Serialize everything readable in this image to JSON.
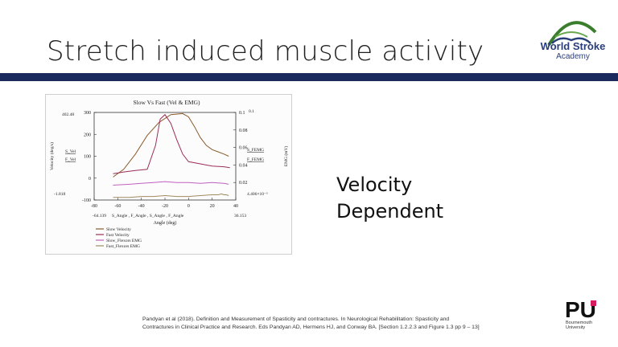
{
  "slide": {
    "title": "Stretch induced muscle activity",
    "velocity_line1": "Velocity",
    "velocity_line2": "Dependent",
    "citation": "Pandyan et al (2018). Definition and Measurement of Spasticity and contractures. In Neurological Rehabilitation: Spasticity and Contractures in Clinical Practice and Research. Eds Pandyan AD, Hermens HJ, and Conway BA. [Section 1.2.2.3 and Figure 1.3 pp 9 – 13]"
  },
  "logos": {
    "wsa_line1": "World Stroke",
    "wsa_line2": "Academy",
    "pu_letters": "PU",
    "pu_line1": "Bournemouth",
    "pu_line2": "University"
  },
  "colors": {
    "title_bar": "#1b2a5c",
    "slow_velocity": "#8B5A2B",
    "fast_velocity": "#9b2d5a",
    "slow_emg": "#c060c0",
    "fast_emg": "#a08a60"
  },
  "chart_data": {
    "type": "line",
    "title": "Slow Vs Fast (Vel & EMG)",
    "xlabel": "Angle (deg)",
    "ylabel_left": "Velocity (deg/s)",
    "ylabel_right": "EMG (mV)",
    "xlim": [
      -80,
      40
    ],
    "ylim_left": [
      -100,
      300
    ],
    "ylim_right": [
      0,
      0.1
    ],
    "x_ticks": [
      "-80",
      "-60",
      "-40",
      "-20",
      "0",
      "20",
      "40"
    ],
    "y_ticks_left": [
      "-100",
      "0",
      "100",
      "200",
      "300"
    ],
    "y_ticks_right": [
      "0.02",
      "0.04",
      "0.06",
      "0.08",
      "0.1"
    ],
    "readouts": {
      "left_top": "402.48",
      "left_bottom": "-1.818",
      "right_bottom": "4.406×10⁻³",
      "x_left": "-64.139",
      "x_right": "36.153",
      "x_mid": "S_Angle , F_Angle , S_Angle , F_Angle",
      "left_labels": [
        "S_Vel",
        "F_Vel"
      ],
      "right_labels": [
        "S_FEMG",
        "F_FEMG"
      ]
    },
    "series": [
      {
        "name": "Slow Velocity",
        "axis": "left",
        "x": [
          -64,
          -55,
          -45,
          -35,
          -25,
          -15,
          -5,
          0,
          5,
          10,
          15,
          20,
          25,
          30,
          34
        ],
        "y": [
          5,
          40,
          110,
          195,
          255,
          290,
          295,
          280,
          235,
          185,
          150,
          130,
          120,
          110,
          100
        ]
      },
      {
        "name": "Fast Velocity",
        "axis": "left",
        "x": [
          -64,
          -55,
          -45,
          -35,
          -28,
          -24,
          -20,
          -15,
          -10,
          -5,
          0,
          10,
          20,
          30,
          35
        ],
        "y": [
          20,
          28,
          35,
          40,
          150,
          270,
          290,
          250,
          175,
          110,
          75,
          65,
          55,
          52,
          48
        ]
      },
      {
        "name": "Slow_Flexors EMG",
        "axis": "right",
        "x": [
          -64,
          -50,
          -40,
          -30,
          -20,
          -10,
          0,
          10,
          20,
          30,
          34
        ],
        "y": [
          0.017,
          0.018,
          0.019,
          0.02,
          0.021,
          0.02,
          0.02,
          0.019,
          0.02,
          0.019,
          0.018
        ]
      },
      {
        "name": "Fast_Flexors EMG",
        "axis": "right",
        "x": [
          -64,
          -50,
          -40,
          -30,
          -20,
          -10,
          0,
          10,
          20,
          25,
          28,
          30,
          32,
          34
        ],
        "y": [
          0.003,
          0.003,
          0.004,
          0.004,
          0.005,
          0.004,
          0.004,
          0.005,
          0.006,
          0.006,
          0.007,
          0.006,
          0.006,
          0.005
        ]
      }
    ],
    "legend": [
      "Slow Velocity",
      "Fast Velocity",
      "Slow_Flexors EMG",
      "Fast_Flexors EMG"
    ],
    "legend_position": "bottom-left"
  }
}
